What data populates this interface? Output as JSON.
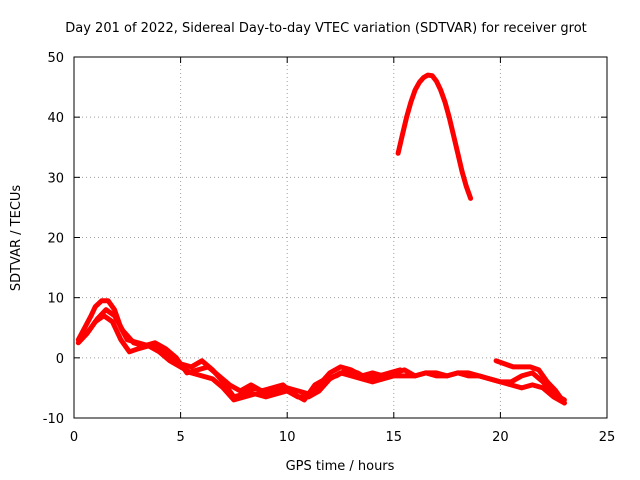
{
  "chart_data": {
    "type": "line",
    "title": "Day 201 of 2022, Sidereal Day-to-day VTEC variation (SDTVAR) for receiver grot",
    "xlabel": "GPS time / hours",
    "ylabel": "SDTVAR / TECUs",
    "xlim": [
      0,
      25
    ],
    "ylim": [
      -10,
      50
    ],
    "xticks": [
      0,
      5,
      10,
      15,
      20,
      25
    ],
    "yticks": [
      -10,
      0,
      10,
      20,
      30,
      40,
      50
    ],
    "grid": true,
    "legend": "none",
    "series_color": "#ff0000",
    "series": [
      {
        "name": "trace-a",
        "x": [
          0.2,
          0.5,
          0.8,
          1.0,
          1.3,
          1.6,
          1.9,
          2.2,
          2.5,
          3.0,
          3.5,
          4.0,
          4.5,
          5.0,
          5.5,
          6.0,
          6.5,
          7.0,
          7.5,
          8.0,
          8.5,
          9.0,
          9.5,
          10.0,
          10.5,
          11.0,
          11.5,
          12.0,
          12.5,
          13.0,
          13.5,
          14.0,
          14.5,
          15.0,
          15.5,
          16.0,
          16.5,
          17.0,
          17.5,
          18.0,
          18.5,
          19.0,
          19.5,
          20.0,
          20.5,
          21.0,
          21.5,
          22.0,
          22.5,
          23.0
        ],
        "y": [
          3,
          5,
          7,
          8.5,
          9.5,
          9.5,
          8,
          5,
          3,
          2.5,
          2,
          1.5,
          0.5,
          -1,
          -1.5,
          -0.5,
          -2,
          -4,
          -6.5,
          -6,
          -5,
          -6,
          -5.5,
          -5,
          -5.5,
          -6,
          -4.5,
          -2.5,
          -1.5,
          -2,
          -3,
          -2.5,
          -3,
          -2.5,
          -2,
          -3,
          -2.5,
          -2.5,
          -3,
          -2.5,
          -2.5,
          -3,
          -3.5,
          -4,
          -4,
          -3,
          -2.5,
          -4,
          -6,
          -7
        ]
      },
      {
        "name": "trace-b",
        "x": [
          0.2,
          0.6,
          1.0,
          1.4,
          1.8,
          2.2,
          2.6,
          3.0,
          3.5,
          4.0,
          4.5,
          5.0,
          5.5,
          6.0,
          6.5,
          7.0,
          7.5,
          8.0,
          8.5,
          9.0,
          9.5,
          10.0,
          10.5,
          11.0,
          11.5,
          12.0,
          12.5,
          13.0,
          13.5,
          14.0,
          14.5,
          15.0,
          15.5,
          16.0,
          16.5,
          17.0,
          17.5,
          18.0,
          18.5,
          19.0,
          19.5,
          20.0,
          20.5,
          21.0,
          21.5,
          22.0,
          22.5,
          23.0
        ],
        "y": [
          2.5,
          4,
          6,
          7,
          6,
          3,
          1,
          1.5,
          2,
          1,
          -0.5,
          -1.5,
          -2.5,
          -3,
          -3.5,
          -5,
          -7,
          -6.5,
          -6,
          -6.5,
          -6,
          -5.5,
          -6.5,
          -6.5,
          -5.5,
          -3.5,
          -2.5,
          -3,
          -3.5,
          -4,
          -3.5,
          -3,
          -3,
          -3,
          -2.5,
          -3,
          -3,
          -2.5,
          -3,
          -3,
          -3.5,
          -4,
          -4.5,
          -5,
          -4.5,
          -5,
          -6.5,
          -7.5
        ]
      },
      {
        "name": "trace-c",
        "x": [
          0.3,
          0.7,
          1.1,
          1.5,
          1.9,
          2.3,
          2.8,
          3.3,
          3.8,
          4.3,
          4.8,
          5.3,
          5.8,
          6.3,
          6.8,
          7.3,
          7.8,
          8.3,
          8.8,
          9.3,
          9.8,
          10.3,
          10.8,
          11.3,
          11.8,
          12.3,
          12.8,
          13.3,
          13.8,
          14.3,
          14.8,
          15.3
        ],
        "y": [
          3,
          4.5,
          6.5,
          8,
          7,
          4.5,
          2.5,
          2,
          2.5,
          1.5,
          0,
          -2.5,
          -2,
          -1.5,
          -3,
          -4.5,
          -5.5,
          -4.5,
          -5.5,
          -5,
          -4.5,
          -6,
          -7,
          -4.5,
          -3.5,
          -3,
          -2,
          -2.5,
          -3.5,
          -3,
          -2.5,
          -2
        ]
      },
      {
        "name": "trace-d",
        "x": [
          15.2,
          15.4,
          15.6,
          15.8,
          16.0,
          16.2,
          16.4,
          16.6,
          16.8,
          17.0,
          17.2,
          17.4,
          17.6,
          17.8,
          18.0,
          18.2,
          18.4,
          18.6
        ],
        "y": [
          34,
          37,
          40,
          42.5,
          44.5,
          45.8,
          46.6,
          47,
          46.9,
          46,
          44.5,
          42.5,
          40,
          37,
          34,
          31,
          28.5,
          26.5
        ]
      },
      {
        "name": "trace-e",
        "x": [
          19.8,
          20.2,
          20.6,
          21.0,
          21.4,
          21.8,
          22.2,
          22.6,
          23.0
        ],
        "y": [
          -0.5,
          -1,
          -1.5,
          -1.5,
          -1.5,
          -2,
          -4,
          -5.5,
          -7.5
        ]
      }
    ]
  }
}
